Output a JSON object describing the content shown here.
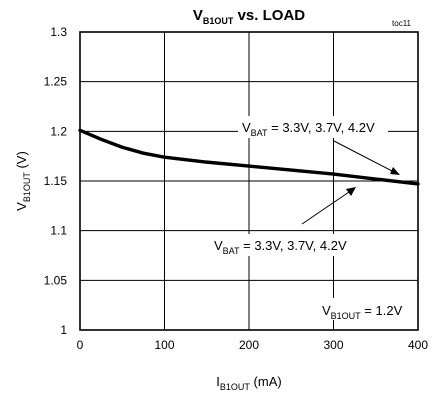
{
  "chart_data": {
    "type": "line",
    "title": {
      "main": "V",
      "sub": "B1OUT",
      "rest": " vs. LOAD"
    },
    "figure_tag": "toc11",
    "xlabel": {
      "main": "I",
      "sub": "B1OUT",
      "rest": " (mA)"
    },
    "ylabel": {
      "main": "V",
      "sub": "B1OUT",
      "rest": " (V)"
    },
    "xlim": [
      0,
      400
    ],
    "ylim": [
      1.0,
      1.3
    ],
    "x_ticks": [
      0,
      100,
      200,
      300,
      400
    ],
    "x_tick_labels": [
      "0",
      "100",
      "200",
      "300",
      "400"
    ],
    "y_ticks": [
      1.0,
      1.05,
      1.1,
      1.15,
      1.2,
      1.25,
      1.3
    ],
    "y_tick_labels": [
      "1",
      "1.05",
      "1.1",
      "1.15",
      "1.2",
      "1.25",
      "1.3"
    ],
    "grid": true,
    "series": [
      {
        "x": [
          0,
          25,
          50,
          75,
          100,
          150,
          200,
          250,
          300,
          350,
          400
        ],
        "y": [
          1.201,
          1.192,
          1.184,
          1.178,
          1.174,
          1.169,
          1.165,
          1.161,
          1.157,
          1.152,
          1.147
        ]
      }
    ],
    "annotations": [
      {
        "main": "V",
        "sub": "BAT",
        "rest": " = 3.3V, 3.7V, 4.2V"
      },
      {
        "main": "V",
        "sub": "BAT",
        "rest": " = 3.3V, 3.7V, 4.2V"
      },
      {
        "main": "V",
        "sub": "B1OUT",
        "rest": " = 1.2V"
      }
    ]
  }
}
